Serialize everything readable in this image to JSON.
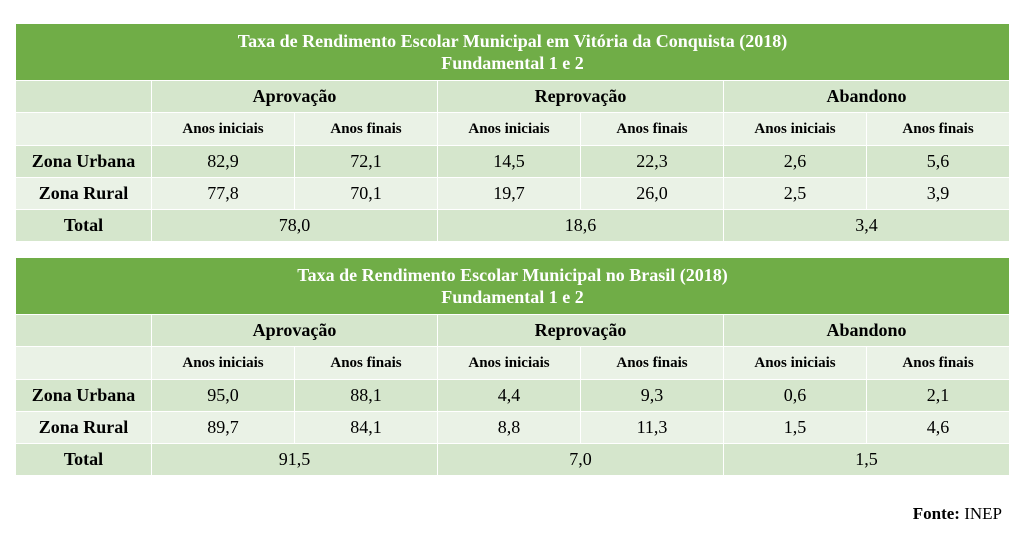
{
  "chart_data": [
    {
      "type": "table",
      "title": "Taxa de Rendimento Escolar Municipal em Vitória da Conquista (2018)",
      "subtitle": "Fundamental 1 e 2",
      "groups": [
        "Aprovação",
        "Reprovação",
        "Abandono"
      ],
      "subcolumns": [
        "Anos iniciais",
        "Anos finais",
        "Anos iniciais",
        "Anos finais",
        "Anos iniciais",
        "Anos finais"
      ],
      "rows": [
        {
          "label": "Zona Urbana",
          "values": [
            "82,9",
            "72,1",
            "14,5",
            "22,3",
            "2,6",
            "5,6"
          ]
        },
        {
          "label": "Zona Rural",
          "values": [
            "77,8",
            "70,1",
            "19,7",
            "26,0",
            "2,5",
            "3,9"
          ]
        }
      ],
      "total": {
        "label": "Total",
        "values": [
          "78,0",
          "18,6",
          "3,4"
        ]
      }
    },
    {
      "type": "table",
      "title": "Taxa de Rendimento Escolar Municipal no Brasil (2018)",
      "subtitle": "Fundamental 1 e 2",
      "groups": [
        "Aprovação",
        "Reprovação",
        "Abandono"
      ],
      "subcolumns": [
        "Anos iniciais",
        "Anos finais",
        "Anos iniciais",
        "Anos finais",
        "Anos iniciais",
        "Anos finais"
      ],
      "rows": [
        {
          "label": "Zona Urbana",
          "values": [
            "95,0",
            "88,1",
            "4,4",
            "9,3",
            "0,6",
            "2,1"
          ]
        },
        {
          "label": "Zona Rural",
          "values": [
            "89,7",
            "84,1",
            "8,8",
            "11,3",
            "1,5",
            "4,6"
          ]
        }
      ],
      "total": {
        "label": "Total",
        "values": [
          "91,5",
          "7,0",
          "1,5"
        ]
      }
    }
  ],
  "source": {
    "label": "Fonte:",
    "value": "INEP"
  }
}
